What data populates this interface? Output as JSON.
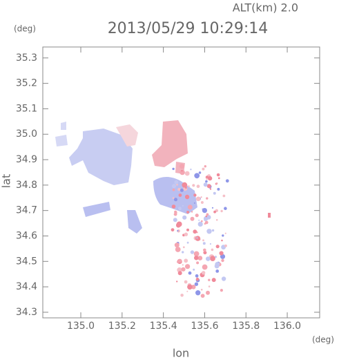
{
  "chart_data": {
    "type": "map",
    "title": "2013/05/29 10:29:14",
    "annotation": "ALT(km) 2.0",
    "x_label": "lon",
    "x_unit": "(deg)",
    "y_label": "lat",
    "y_unit": "(deg)",
    "xlim": [
      134.816,
      136.157
    ],
    "ylim": [
      34.278,
      35.343
    ],
    "xticks": [
      {
        "value": 135.0,
        "label": "135.0"
      },
      135.2,
      135.4,
      135.6,
      135.8,
      {
        "value": 136.0,
        "label": "136.0"
      }
    ],
    "yticks": [
      34.3,
      34.4,
      34.5,
      34.6,
      34.7,
      34.8,
      34.9,
      {
        "value": 35.0,
        "label": "35.0"
      },
      35.1,
      35.2,
      35.3
    ]
  }
}
